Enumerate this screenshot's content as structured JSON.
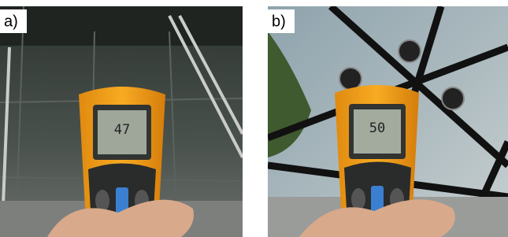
{
  "panels": [
    {
      "label": "a)",
      "reading": "47"
    },
    {
      "label": "b)",
      "reading": "50"
    }
  ]
}
